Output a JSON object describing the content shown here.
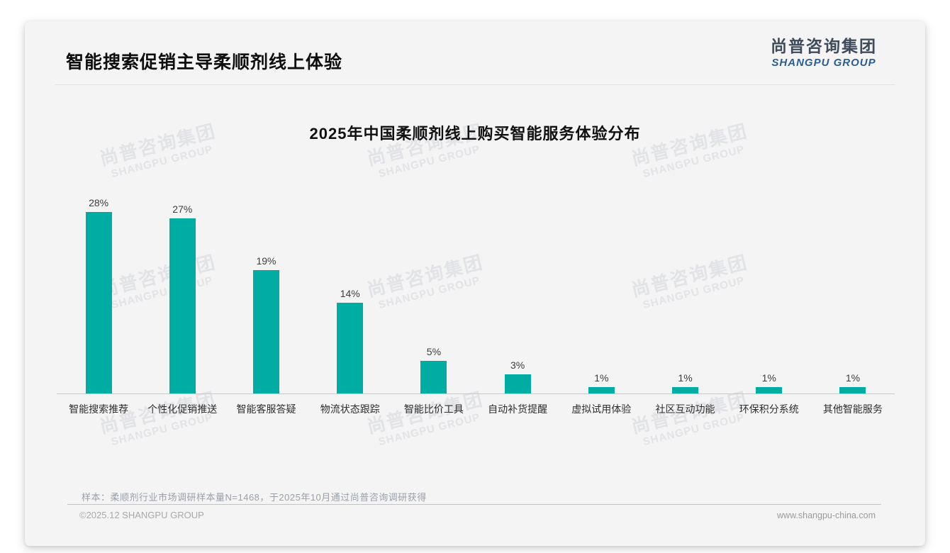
{
  "page": {
    "title": "智能搜索促销主导柔顺剂线上体验",
    "logo": {
      "cn": "尚普咨询集团",
      "en": "SHANGPU GROUP"
    },
    "watermark": {
      "cn": "尚普咨询集团",
      "en": "SHANGPU GROUP"
    },
    "note": "样本：柔顺剂行业市场调研样本量N=1468，于2025年10月通过尚普咨询调研获得",
    "footer": {
      "left": "©2025.12 SHANGPU GROUP",
      "right": "www.shangpu-china.com"
    }
  },
  "chart_data": {
    "type": "bar",
    "title": "2025年中国柔顺剂线上购买智能服务体验分布",
    "categories": [
      "智能搜索推荐",
      "个性化促销推送",
      "智能客服答疑",
      "物流状态跟踪",
      "智能比价工具",
      "自动补货提醒",
      "虚拟试用体验",
      "社区互动功能",
      "环保积分系统",
      "其他智能服务"
    ],
    "values": [
      28,
      27,
      19,
      14,
      5,
      3,
      1,
      1,
      1,
      1
    ],
    "unit": "%",
    "value_label_format": "value+%",
    "bar_color": "#00ada3",
    "xlabel": "",
    "ylabel": "",
    "ylim": [
      0,
      30
    ],
    "grid": false,
    "legend_position": "none"
  }
}
